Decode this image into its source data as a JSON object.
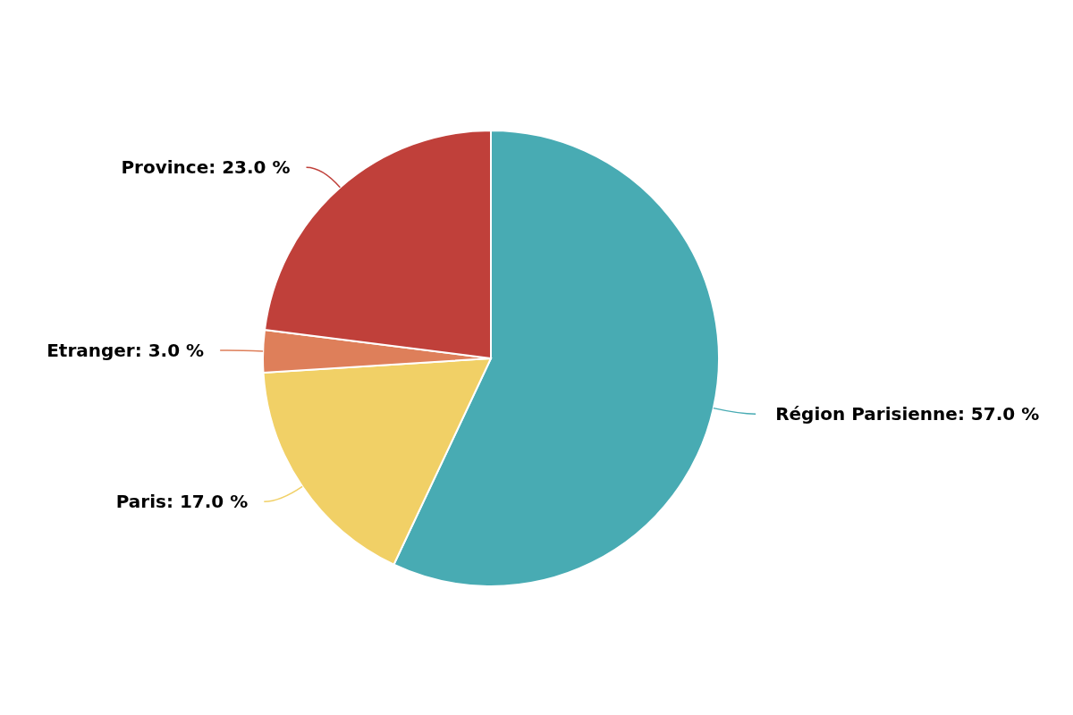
{
  "chart_data": {
    "type": "pie",
    "categories": [
      "Région Parisienne",
      "Paris",
      "Etranger",
      "Province"
    ],
    "values": [
      57,
      17,
      3,
      23
    ],
    "colors": [
      "#48abb3",
      "#f1d066",
      "#de7f5a",
      "#c0403a"
    ],
    "value_labels": [
      "57.0 %",
      "17.0 %",
      "3.0 %",
      "23.0 %"
    ],
    "legend": false
  }
}
